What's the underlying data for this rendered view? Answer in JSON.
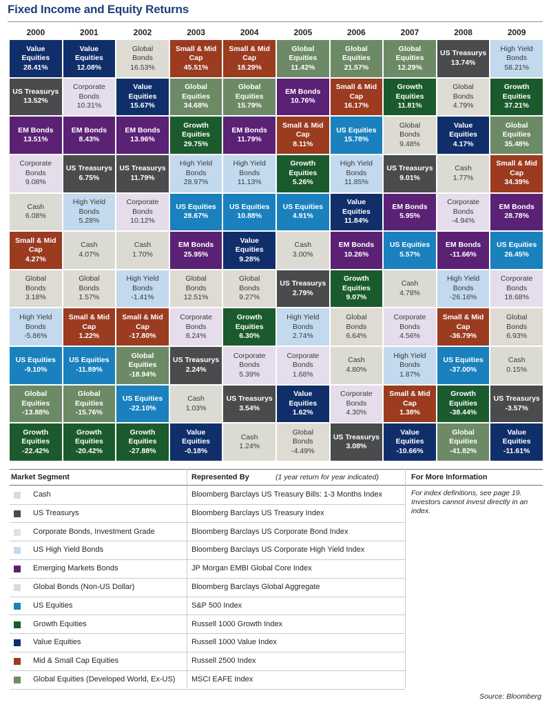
{
  "title": "Fixed Income and Equity Returns",
  "colors": {
    "Cash": "#dcdbd3",
    "US Treasurys": "#4a4b4d",
    "Corporate Bonds": "#e5dcec",
    "High Yield Bonds": "#c2d9ee",
    "EM Bonds": "#5b2175",
    "Global Bonds": "#dddbd2",
    "US Equities": "#1a81be",
    "Growth Equities": "#1b5a2c",
    "Value Equities": "#102f6a",
    "Small & Mid Cap": "#9b3b20",
    "Global Equities": "#6d8a66"
  },
  "chart_data": {
    "type": "table",
    "title": "Fixed Income and Equity Returns",
    "years": [
      "2000",
      "2001",
      "2002",
      "2003",
      "2004",
      "2005",
      "2006",
      "2007",
      "2008",
      "2009"
    ],
    "columns": [
      [
        {
          "name": "Value Equities",
          "value": "28.41%"
        },
        {
          "name": "US Treasurys",
          "value": "13.52%"
        },
        {
          "name": "EM Bonds",
          "value": "13.51%"
        },
        {
          "name": "Corporate Bonds",
          "value": "9.08%"
        },
        {
          "name": "Cash",
          "value": "6.08%"
        },
        {
          "name": "Small & Mid Cap",
          "value": "4.27%"
        },
        {
          "name": "Global Bonds",
          "value": "3.18%"
        },
        {
          "name": "High Yield Bonds",
          "value": "-5.86%"
        },
        {
          "name": "US Equities",
          "value": "-9.10%"
        },
        {
          "name": "Global Equities",
          "value": "-13.88%"
        },
        {
          "name": "Growth Equities",
          "value": "-22.42%"
        }
      ],
      [
        {
          "name": "Value Equities",
          "value": "12.08%"
        },
        {
          "name": "Corporate Bonds",
          "value": "10.31%"
        },
        {
          "name": "EM Bonds",
          "value": "8.43%"
        },
        {
          "name": "US Treasurys",
          "value": "6.75%"
        },
        {
          "name": "High Yield Bonds",
          "value": "5.28%"
        },
        {
          "name": "Cash",
          "value": "4.07%"
        },
        {
          "name": "Global Bonds",
          "value": "1.57%"
        },
        {
          "name": "Small & Mid Cap",
          "value": "1.22%"
        },
        {
          "name": "US Equities",
          "value": "-11.89%"
        },
        {
          "name": "Global Equities",
          "value": "-15.76%"
        },
        {
          "name": "Growth Equities",
          "value": "-20.42%"
        }
      ],
      [
        {
          "name": "Global Bonds",
          "value": "16.53%"
        },
        {
          "name": "Value Equities",
          "value": "15.67%"
        },
        {
          "name": "EM Bonds",
          "value": "13.96%"
        },
        {
          "name": "US Treasurys",
          "value": "11.79%"
        },
        {
          "name": "Corporate Bonds",
          "value": "10.12%"
        },
        {
          "name": "Cash",
          "value": "1.70%"
        },
        {
          "name": "High Yield Bonds",
          "value": "-1.41%"
        },
        {
          "name": "Small & Mid Cap",
          "value": "-17.80%"
        },
        {
          "name": "Global Equities",
          "value": "-18.94%"
        },
        {
          "name": "US Equities",
          "value": "-22.10%"
        },
        {
          "name": "Growth Equities",
          "value": "-27.88%"
        }
      ],
      [
        {
          "name": "Small & Mid Cap",
          "value": "45.51%"
        },
        {
          "name": "Global Equities",
          "value": "34.68%"
        },
        {
          "name": "Growth Equities",
          "value": "29.75%"
        },
        {
          "name": "High Yield Bonds",
          "value": "28.97%"
        },
        {
          "name": "US Equities",
          "value": "28.67%"
        },
        {
          "name": "EM Bonds",
          "value": "25.95%"
        },
        {
          "name": "Global Bonds",
          "value": "12.51%"
        },
        {
          "name": "Corporate Bonds",
          "value": "8.24%"
        },
        {
          "name": "US Treasurys",
          "value": "2.24%"
        },
        {
          "name": "Cash",
          "value": "1.03%"
        },
        {
          "name": "Value Equities",
          "value": "-0.18%"
        }
      ],
      [
        {
          "name": "Small & Mid Cap",
          "value": "18.29%"
        },
        {
          "name": "Global Equities",
          "value": "15.79%"
        },
        {
          "name": "EM Bonds",
          "value": "11.79%"
        },
        {
          "name": "High Yield Bonds",
          "value": "11.13%"
        },
        {
          "name": "US Equities",
          "value": "10.88%"
        },
        {
          "name": "Value Equities",
          "value": "9.28%"
        },
        {
          "name": "Global Bonds",
          "value": "9.27%"
        },
        {
          "name": "Growth Equities",
          "value": "6.30%"
        },
        {
          "name": "Corporate Bonds",
          "value": "5.39%"
        },
        {
          "name": "US Treasurys",
          "value": "3.54%"
        },
        {
          "name": "Cash",
          "value": "1.24%"
        }
      ],
      [
        {
          "name": "Global Equities",
          "value": "11.42%"
        },
        {
          "name": "EM Bonds",
          "value": "10.76%"
        },
        {
          "name": "Small & Mid Cap",
          "value": "8.11%"
        },
        {
          "name": "Growth Equities",
          "value": "5.26%"
        },
        {
          "name": "US Equities",
          "value": "4.91%"
        },
        {
          "name": "Cash",
          "value": "3.00%"
        },
        {
          "name": "US Treasurys",
          "value": "2.79%"
        },
        {
          "name": "High Yield Bonds",
          "value": "2.74%"
        },
        {
          "name": "Corporate Bonds",
          "value": "1.68%"
        },
        {
          "name": "Value Equities",
          "value": "1.62%"
        },
        {
          "name": "Global Bonds",
          "value": "-4.49%"
        }
      ],
      [
        {
          "name": "Global Equities",
          "value": "21.57%"
        },
        {
          "name": "Small & Mid Cap",
          "value": "16.17%"
        },
        {
          "name": "US Equities",
          "value": "15.78%"
        },
        {
          "name": "High Yield Bonds",
          "value": "11.85%"
        },
        {
          "name": "Value Equities",
          "value": "11.84%"
        },
        {
          "name": "EM Bonds",
          "value": "10.26%"
        },
        {
          "name": "Growth Equities",
          "value": "9.07%"
        },
        {
          "name": "Global Bonds",
          "value": "6.64%"
        },
        {
          "name": "Cash",
          "value": "4.80%"
        },
        {
          "name": "Corporate Bonds",
          "value": "4.30%"
        },
        {
          "name": "US Treasurys",
          "value": "3.08%"
        }
      ],
      [
        {
          "name": "Global Equities",
          "value": "12.29%"
        },
        {
          "name": "Growth Equities",
          "value": "11.81%"
        },
        {
          "name": "Global Bonds",
          "value": "9.48%"
        },
        {
          "name": "US Treasurys",
          "value": "9.01%"
        },
        {
          "name": "EM Bonds",
          "value": "5.95%"
        },
        {
          "name": "US Equities",
          "value": "5.57%"
        },
        {
          "name": "Cash",
          "value": "4.78%"
        },
        {
          "name": "Corporate Bonds",
          "value": "4.56%"
        },
        {
          "name": "High Yield Bonds",
          "value": "1.87%"
        },
        {
          "name": "Small & Mid Cap",
          "value": "1.38%"
        },
        {
          "name": "Value Equities",
          "value": "-10.66%"
        }
      ],
      [
        {
          "name": "US Treasurys",
          "value": "13.74%"
        },
        {
          "name": "Global Bonds",
          "value": "4.79%"
        },
        {
          "name": "Value Equities",
          "value": "4.17%"
        },
        {
          "name": "Cash",
          "value": "1.77%"
        },
        {
          "name": "Corporate Bonds",
          "value": "-4.94%"
        },
        {
          "name": "EM Bonds",
          "value": "-11.66%"
        },
        {
          "name": "High Yield Bonds",
          "value": "-26.16%"
        },
        {
          "name": "Small & Mid Cap",
          "value": "-36.79%"
        },
        {
          "name": "US Equities",
          "value": "-37.00%"
        },
        {
          "name": "Growth Equities",
          "value": "-38.44%"
        },
        {
          "name": "Global Equities",
          "value": "-41.82%"
        }
      ],
      [
        {
          "name": "High Yield Bonds",
          "value": "58.21%"
        },
        {
          "name": "Growth Equities",
          "value": "37.21%"
        },
        {
          "name": "Global Equities",
          "value": "35.48%"
        },
        {
          "name": "Small & Mid Cap",
          "value": "34.39%"
        },
        {
          "name": "EM Bonds",
          "value": "28.78%"
        },
        {
          "name": "US Equities",
          "value": "26.45%"
        },
        {
          "name": "Corporate Bonds",
          "value": "18.68%"
        },
        {
          "name": "Global Bonds",
          "value": "6.93%"
        },
        {
          "name": "Cash",
          "value": "0.15%"
        },
        {
          "name": "US Treasurys",
          "value": "-3.57%"
        },
        {
          "name": "Value Equities",
          "value": "-11.61%"
        }
      ]
    ]
  },
  "legend": {
    "segment_header": "Market Segment",
    "represented_header": "Represented By",
    "represented_note": "(1 year return for year indicated)",
    "more_header": "For More Information",
    "more_text": "For index definitions, see page 19. Investors cannot invest directly in an index.",
    "rows": [
      {
        "key": "Cash",
        "segment": "Cash",
        "index": "Bloomberg Barclays US Treasury Bills: 1-3  Months Index"
      },
      {
        "key": "US Treasurys",
        "segment": "US Treasurys",
        "index": "Bloomberg Barclays US Treasury Index"
      },
      {
        "key": "Corporate Bonds",
        "segment": "Corporate Bonds, Investment Grade",
        "index": "Bloomberg Barclays US Corporate Bond Index"
      },
      {
        "key": "High Yield Bonds",
        "segment": "US High Yield Bonds",
        "index": "Bloomberg Barclays US Corporate High Yield Index"
      },
      {
        "key": "EM Bonds",
        "segment": "Emerging Markets Bonds",
        "index": "JP Morgan EMBI Global Core Index"
      },
      {
        "key": "Global Bonds",
        "segment": "Global Bonds (Non-US Dollar)",
        "index": "Bloomberg Barclays Global Aggregate"
      },
      {
        "key": "US Equities",
        "segment": "US Equities",
        "index": "S&P 500 Index"
      },
      {
        "key": "Growth Equities",
        "segment": "Growth Equities",
        "index": "Russell 1000 Growth Index"
      },
      {
        "key": "Value Equities",
        "segment": "Value Equities",
        "index": "Russell 1000 Value Index"
      },
      {
        "key": "Small & Mid Cap",
        "segment": "Mid & Small Cap Equities",
        "index": "Russell 2500 Index"
      },
      {
        "key": "Global Equities",
        "segment": "Global Equities (Developed World, Ex-US)",
        "index": "MSCI EAFE Index"
      }
    ]
  },
  "source": "Source: Bloomberg"
}
